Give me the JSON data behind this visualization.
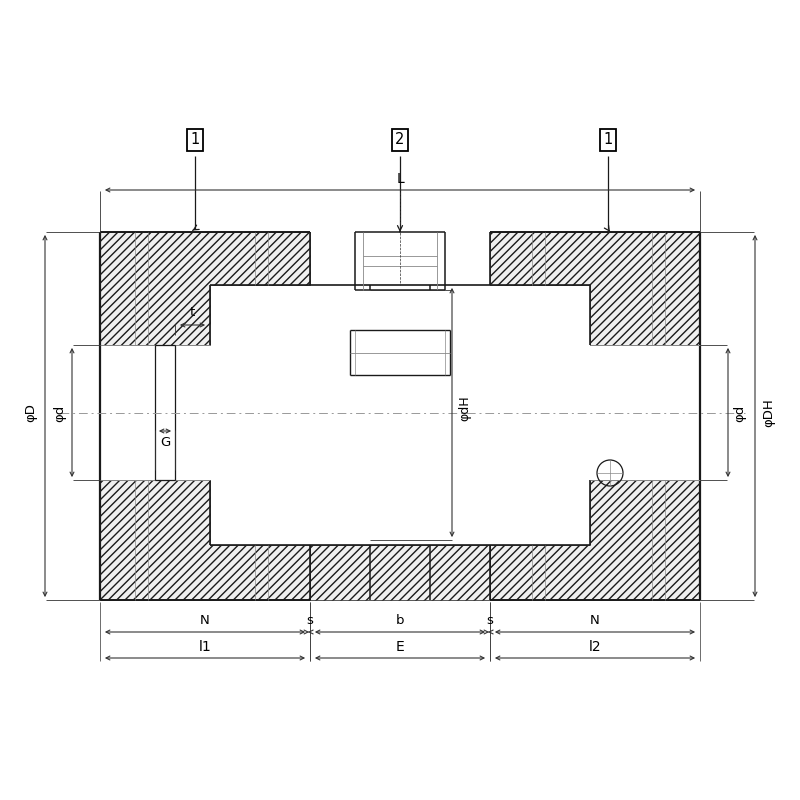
{
  "bg_color": "#ffffff",
  "lc": "#1a1a1a",
  "llc": "#888888",
  "dlc": "#333333",
  "fig_width": 8.0,
  "fig_height": 8.0,
  "dpi": 100,
  "labels": {
    "phiD": "φD",
    "phid_left": "φd",
    "phidH": "φdH",
    "phid_right": "φd",
    "phiDH": "φDH",
    "L": "L",
    "t": "t",
    "G": "G",
    "N": "N",
    "s": "s",
    "b": "b",
    "E": "E",
    "l1": "l1",
    "l2": "l2",
    "part1": "1",
    "part2": "2"
  }
}
